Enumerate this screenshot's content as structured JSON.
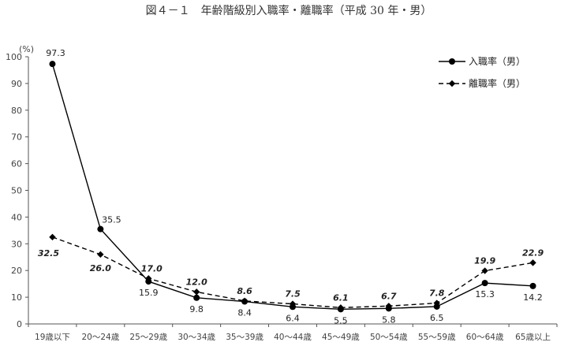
{
  "chart_data": {
    "type": "line",
    "title": "図４－１　年齢階級別入職率・離職率（平成 30 年・男）",
    "ylabel": "(%)",
    "ylim": [
      0,
      100
    ],
    "yticks": [
      0,
      10,
      20,
      30,
      40,
      50,
      60,
      70,
      80,
      90,
      100
    ],
    "grid": false,
    "legend_position": "top-right",
    "categories": [
      "19歳以下",
      "20～24歳",
      "25～29歳",
      "30～34歳",
      "35～39歳",
      "40～44歳",
      "45～49歳",
      "50～54歳",
      "55～59歳",
      "60～64歳",
      "65歳以上"
    ],
    "series": [
      {
        "name": "入職率（男）",
        "marker": "circle",
        "line_style": "solid",
        "label_style": "normal",
        "color": "#000000",
        "values": [
          97.3,
          35.5,
          15.9,
          9.8,
          8.4,
          6.4,
          5.5,
          5.8,
          6.5,
          15.3,
          14.2
        ]
      },
      {
        "name": "離職率（男）",
        "marker": "diamond",
        "line_style": "dashed",
        "label_style": "italic",
        "color": "#000000",
        "values": [
          32.5,
          26.0,
          17.0,
          12.0,
          8.6,
          7.5,
          6.1,
          6.7,
          7.8,
          19.9,
          22.9
        ]
      }
    ]
  }
}
